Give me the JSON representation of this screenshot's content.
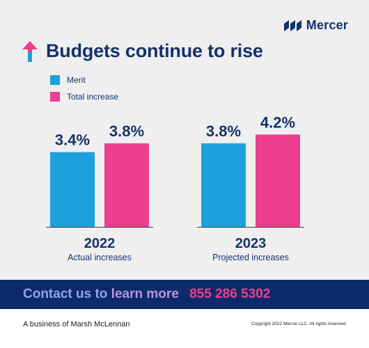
{
  "brand": {
    "name": "Mercer",
    "color": "#14326b"
  },
  "title": "Budgets continue to rise",
  "colors": {
    "merit": "#1ea0dc",
    "total": "#ee3e8e",
    "navy": "#14326b",
    "arrow_pink": "#ee3e8e",
    "arrow_blue": "#1ea0dc"
  },
  "chart_data": {
    "type": "bar",
    "categories": [
      "2022",
      "2023"
    ],
    "subtitles": [
      "Actual increases",
      "Projected increases"
    ],
    "series": [
      {
        "name": "Merit",
        "values": [
          3.4,
          3.8
        ],
        "labels": [
          "3.4%",
          "3.8%"
        ],
        "color": "#1ea0dc"
      },
      {
        "name": "Total increase",
        "values": [
          3.8,
          4.2
        ],
        "labels": [
          "3.8%",
          "4.2%"
        ],
        "color": "#ee3e8e"
      }
    ],
    "unit": "%",
    "legend_position": "top-left",
    "grid": false
  },
  "contact": {
    "lead_1": "Contact us to",
    "lead_2": "learn more",
    "phone": "855 286 5302"
  },
  "footer": {
    "left": "A business of Marsh McLennan",
    "right": "Copyright 2022 Mercer LLC. All rights reserved."
  }
}
